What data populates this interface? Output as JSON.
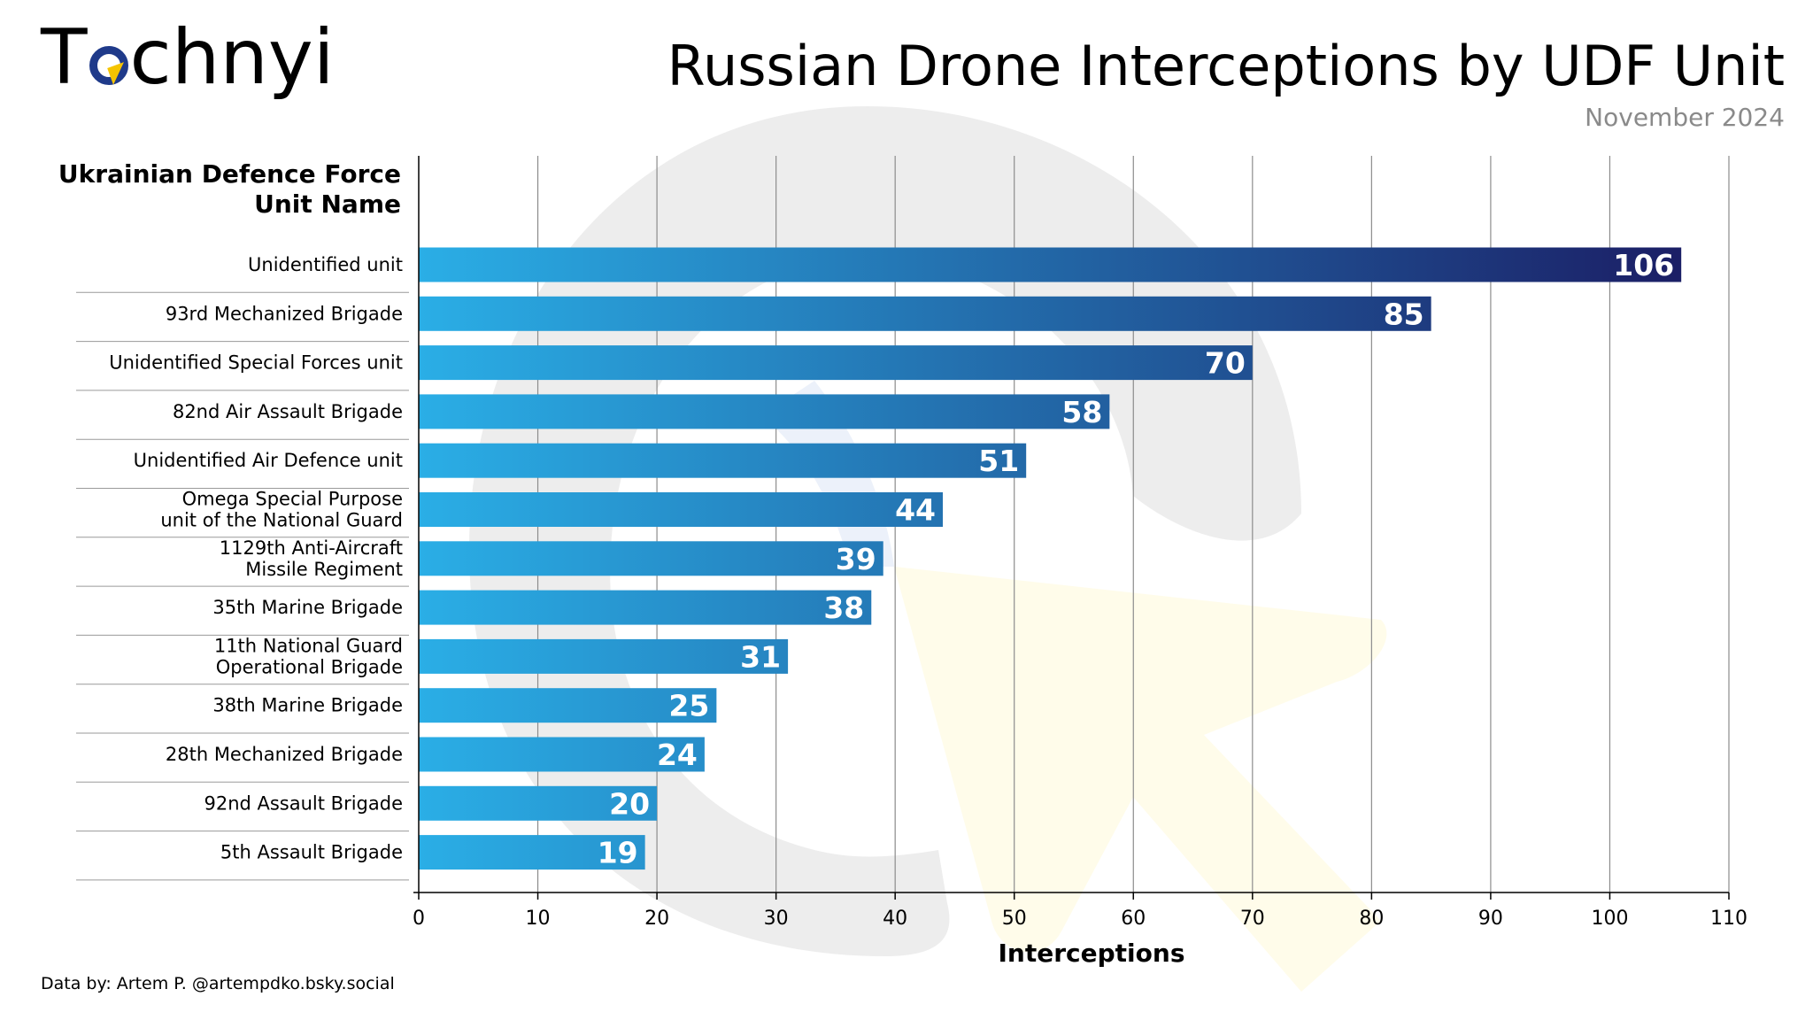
{
  "brand": {
    "logo_text_left": "T",
    "logo_text_right": "chnyi"
  },
  "header": {
    "title": "Russian Drone Interceptions by UDF Unit",
    "subtitle": "November 2024",
    "category_header": [
      "Ukrainian Defence Force",
      "Unit Name"
    ]
  },
  "footer": {
    "credit": "Data by: Artem P. @artempdko.bsky.social"
  },
  "colors": {
    "bar_light": "#2aaee6",
    "bar_dark": "#1b1f66",
    "grid": "#7a7a7a"
  },
  "chart_data": {
    "type": "bar",
    "orientation": "horizontal",
    "categories": [
      "Unidentified unit",
      "93rd Mechanized Brigade",
      "Unidentified Special Forces unit",
      "82nd Air Assault Brigade",
      "Unidentified Air Defence unit",
      "Omega Special Purpose unit of the National Guard",
      "1129th Anti-Aircraft Missile Regiment",
      "35th Marine Brigade",
      "11th National Guard Operational Brigade",
      "38th Marine Brigade",
      "28th Mechanized Brigade",
      "92nd Assault Brigade",
      "5th Assault Brigade"
    ],
    "values": [
      106,
      85,
      70,
      58,
      51,
      44,
      39,
      38,
      31,
      25,
      24,
      20,
      19
    ],
    "xlabel": "Interceptions",
    "xlim": [
      0,
      110
    ],
    "xticks": [
      0,
      10,
      20,
      30,
      40,
      50,
      60,
      70,
      80,
      90,
      100,
      110
    ],
    "grid": true
  }
}
